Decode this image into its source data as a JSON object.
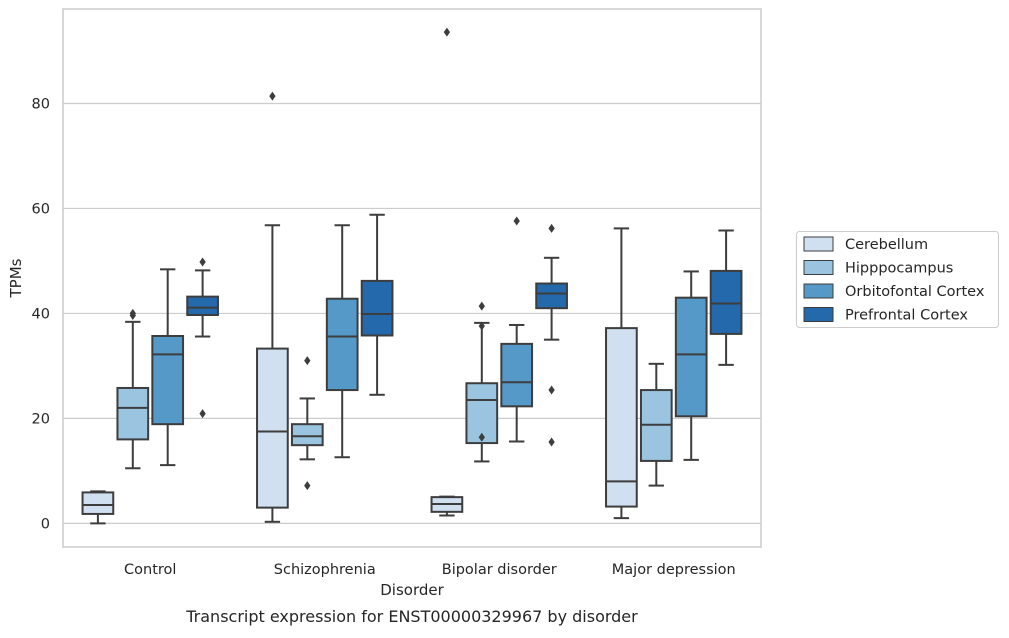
{
  "chart_data": {
    "type": "boxplot",
    "title": "",
    "caption": "Transcript expression for ENST00000329967 by disorder",
    "xlabel": "Disorder",
    "ylabel": "TPMs",
    "ylim": [
      -4.5,
      98
    ],
    "yticks": [
      0,
      20,
      40,
      60,
      80
    ],
    "grid": "horizontal",
    "legend_position": "right",
    "categories": [
      "Control",
      "Schizophrenia",
      "Bipolar disorder",
      "Major depression"
    ],
    "series": [
      {
        "name": "Cerebellum",
        "color": "#d1e0f0",
        "boxes": [
          {
            "whislo": 0.0,
            "q1": 1.8,
            "med": 3.5,
            "q3": 5.9,
            "whishi": 6.1,
            "fliers": []
          },
          {
            "whislo": 0.3,
            "q1": 3.0,
            "med": 17.5,
            "q3": 33.3,
            "whishi": 56.8,
            "fliers": [
              81.4
            ]
          },
          {
            "whislo": 1.5,
            "q1": 2.2,
            "med": 3.7,
            "q3": 5.0,
            "whishi": 5.1,
            "fliers": [
              93.6
            ]
          },
          {
            "whislo": 1.0,
            "q1": 3.2,
            "med": 8.0,
            "q3": 37.2,
            "whishi": 56.2,
            "fliers": []
          }
        ]
      },
      {
        "name": "Hipppocampus",
        "color": "#9ac4e0",
        "boxes": [
          {
            "whislo": 10.5,
            "q1": 16.0,
            "med": 22.0,
            "q3": 25.8,
            "whishi": 38.4,
            "fliers": [
              39.6,
              40.0
            ]
          },
          {
            "whislo": 12.2,
            "q1": 14.9,
            "med": 16.6,
            "q3": 18.9,
            "whishi": 23.8,
            "fliers": [
              7.2,
              31.0
            ]
          },
          {
            "whislo": 11.8,
            "q1": 15.3,
            "med": 23.5,
            "q3": 26.7,
            "whishi": 38.2,
            "fliers": [
              16.4,
              37.6,
              41.4
            ]
          },
          {
            "whislo": 7.2,
            "q1": 11.9,
            "med": 18.8,
            "q3": 25.4,
            "whishi": 30.4,
            "fliers": []
          }
        ]
      },
      {
        "name": "Orbitofontal Cortex",
        "color": "#5499c8",
        "boxes": [
          {
            "whislo": 11.1,
            "q1": 18.9,
            "med": 32.2,
            "q3": 35.7,
            "whishi": 48.4,
            "fliers": []
          },
          {
            "whislo": 12.6,
            "q1": 25.4,
            "med": 35.6,
            "q3": 42.8,
            "whishi": 56.8,
            "fliers": []
          },
          {
            "whislo": 15.6,
            "q1": 22.3,
            "med": 26.9,
            "q3": 34.2,
            "whishi": 37.8,
            "fliers": [
              57.6
            ]
          },
          {
            "whislo": 12.1,
            "q1": 20.4,
            "med": 32.2,
            "q3": 43.0,
            "whishi": 48.0,
            "fliers": []
          }
        ]
      },
      {
        "name": "Prefrontal Cortex",
        "color": "#2369ab",
        "boxes": [
          {
            "whislo": 35.6,
            "q1": 39.7,
            "med": 41.1,
            "q3": 43.2,
            "whishi": 48.2,
            "fliers": [
              20.9,
              49.8
            ]
          },
          {
            "whislo": 24.5,
            "q1": 35.8,
            "med": 39.9,
            "q3": 46.2,
            "whishi": 58.8,
            "fliers": []
          },
          {
            "whislo": 35.0,
            "q1": 41.0,
            "med": 43.8,
            "q3": 45.7,
            "whishi": 50.6,
            "fliers": [
              15.5,
              25.4,
              56.2
            ]
          },
          {
            "whislo": 30.2,
            "q1": 36.1,
            "med": 41.9,
            "q3": 48.1,
            "whishi": 55.8,
            "fliers": []
          }
        ]
      }
    ]
  }
}
